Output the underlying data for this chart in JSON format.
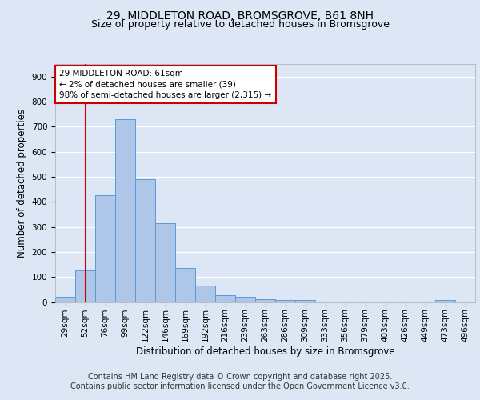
{
  "title_line1": "29, MIDDLETON ROAD, BROMSGROVE, B61 8NH",
  "title_line2": "Size of property relative to detached houses in Bromsgrove",
  "xlabel": "Distribution of detached houses by size in Bromsgrove",
  "ylabel": "Number of detached properties",
  "footer_line1": "Contains HM Land Registry data © Crown copyright and database right 2025.",
  "footer_line2": "Contains public sector information licensed under the Open Government Licence v3.0.",
  "annotation_title": "29 MIDDLETON ROAD: 61sqm",
  "annotation_line1": "← 2% of detached houses are smaller (39)",
  "annotation_line2": "98% of semi-detached houses are larger (2,315) →",
  "red_line_x": 1,
  "categories": [
    "29sqm",
    "52sqm",
    "76sqm",
    "99sqm",
    "122sqm",
    "146sqm",
    "169sqm",
    "192sqm",
    "216sqm",
    "239sqm",
    "263sqm",
    "286sqm",
    "309sqm",
    "333sqm",
    "356sqm",
    "379sqm",
    "403sqm",
    "426sqm",
    "449sqm",
    "473sqm",
    "496sqm"
  ],
  "values": [
    20,
    125,
    425,
    730,
    490,
    315,
    135,
    65,
    28,
    20,
    12,
    8,
    8,
    0,
    0,
    0,
    0,
    0,
    0,
    8,
    0
  ],
  "bar_color": "#aec6e8",
  "bar_edge_color": "#5b9bd5",
  "red_line_color": "#cc0000",
  "annotation_box_color": "#ffffff",
  "annotation_box_edge": "#cc0000",
  "ylim": [
    0,
    950
  ],
  "yticks": [
    0,
    100,
    200,
    300,
    400,
    500,
    600,
    700,
    800,
    900
  ],
  "background_color": "#dce6f5",
  "grid_color": "#ffffff",
  "title_fontsize": 10,
  "subtitle_fontsize": 9,
  "axis_label_fontsize": 8.5,
  "tick_fontsize": 7.5,
  "footer_fontsize": 7
}
